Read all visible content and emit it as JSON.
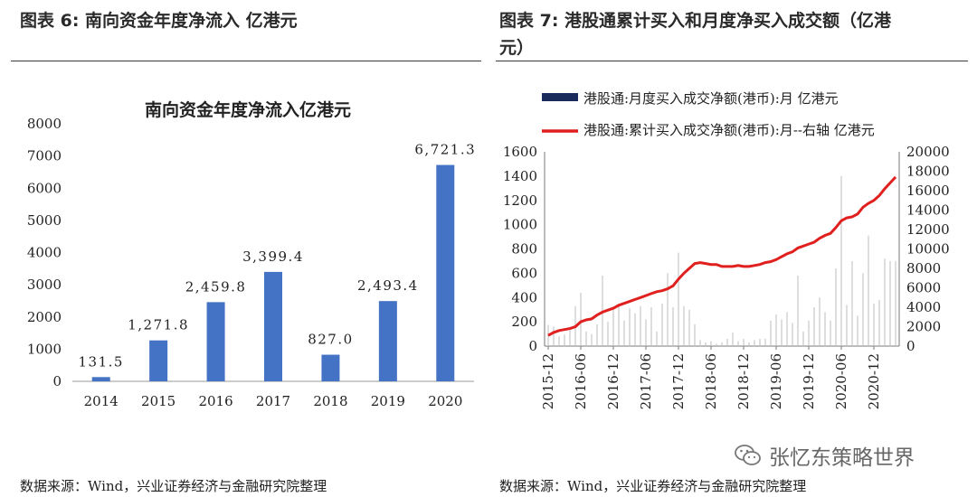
{
  "left_panel": {
    "figure_title": "图表 6:  南向资金年度净流入  亿港元",
    "source": "数据来源：Wind，兴业证券经济与金融研究院整理"
  },
  "right_panel": {
    "figure_title_line1": "图表 7:  港股通累计买入和月度净买入成交额（亿港",
    "figure_title_line2": "元）",
    "source": "数据来源：Wind，兴业证券经济与金融研究院整理"
  },
  "watermark": {
    "text": "张忆东策略世界",
    "icon": "wechat-icon"
  },
  "chart_data": [
    {
      "type": "bar",
      "title": "南向资金年度净流入亿港元",
      "categories": [
        "2014",
        "2015",
        "2016",
        "2017",
        "2018",
        "2019",
        "2020"
      ],
      "values": [
        131.5,
        1271.8,
        2459.8,
        3399.4,
        827.0,
        2493.4,
        6721.3
      ],
      "data_labels": [
        "131.5",
        "1,271.8",
        "2,459.8",
        "3,399.4",
        "827.0",
        "2,493.4",
        "6,721.3"
      ],
      "ylim": [
        0,
        8000
      ],
      "yticks": [
        0,
        1000,
        2000,
        3000,
        4000,
        5000,
        6000,
        7000,
        8000
      ],
      "bar_color": "#4472C4",
      "grid": false
    },
    {
      "type": "bar+line",
      "legend": [
        {
          "name": "港股通:月度买入成交净额(港币):月 亿港元",
          "kind": "bar",
          "color": "#1a2a5a"
        },
        {
          "name": "港股通:累计买入成交净额(港币):月--右轴 亿港元",
          "kind": "line",
          "color": "#e0201e"
        }
      ],
      "x_tick_labels": [
        "2015-12",
        "2016-06",
        "2016-12",
        "2017-06",
        "2017-12",
        "2018-06",
        "2018-12",
        "2019-06",
        "2019-12",
        "2020-06",
        "2020-12"
      ],
      "left_axis": {
        "ylim": [
          0,
          1600
        ],
        "ticks": [
          0,
          200,
          400,
          600,
          800,
          1000,
          1200,
          1400,
          1600
        ]
      },
      "right_axis": {
        "ylim": [
          0,
          20000
        ],
        "ticks": [
          0,
          2000,
          4000,
          6000,
          8000,
          10000,
          12000,
          14000,
          16000,
          18000,
          20000
        ]
      },
      "bar_series_name": "港股通:月度买入成交净额(港币):月 亿港元",
      "bar_series_color": "#c8c8c8",
      "bar_values": [
        175,
        160,
        80,
        95,
        130,
        330,
        440,
        120,
        100,
        180,
        580,
        200,
        320,
        340,
        210,
        310,
        270,
        330,
        220,
        320,
        120,
        350,
        600,
        320,
        770,
        330,
        300,
        180,
        50,
        30,
        40,
        20,
        30,
        60,
        110,
        40,
        60,
        30,
        50,
        60,
        60,
        210,
        260,
        220,
        280,
        190,
        580,
        120,
        210,
        320,
        400,
        280,
        210,
        640,
        1400,
        340,
        700,
        250,
        600,
        910,
        350,
        380,
        720,
        700,
        700
      ],
      "line_series_name": "港股通:累计买入成交净额(港币):月--右轴 亿港元",
      "line_values": [
        1100,
        1400,
        1600,
        1700,
        1800,
        2000,
        2500,
        2700,
        2800,
        3200,
        3500,
        3700,
        3900,
        4200,
        4400,
        4600,
        4800,
        5000,
        5200,
        5400,
        5600,
        5700,
        5900,
        6200,
        6900,
        7500,
        8000,
        8500,
        8600,
        8500,
        8400,
        8400,
        8200,
        8200,
        8200,
        8300,
        8200,
        8200,
        8300,
        8400,
        8600,
        8700,
        8900,
        9200,
        9500,
        9700,
        10100,
        10300,
        10500,
        10700,
        11100,
        11400,
        11600,
        12200,
        12900,
        13200,
        13300,
        13600,
        14300,
        14700,
        15000,
        15500,
        16200,
        16800,
        17400
      ],
      "grid": false
    }
  ]
}
